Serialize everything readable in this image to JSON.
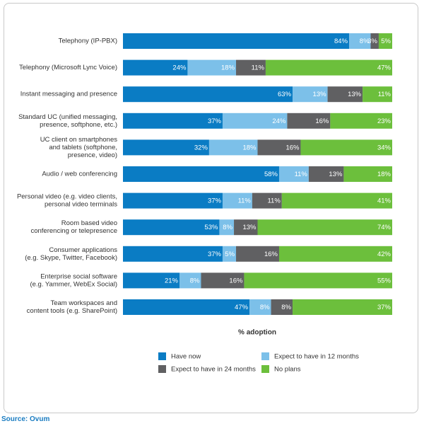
{
  "source": "Source: Ovum",
  "chart_data": {
    "type": "bar",
    "orientation": "horizontal",
    "stacked": true,
    "xlabel": "% adoption",
    "categories": [
      [
        "Telephony (IP-PBX)"
      ],
      [
        "Telephony (Microsoft Lync Voice)"
      ],
      [
        "Instant messaging and presence"
      ],
      [
        "Standard UC (unified messaging,",
        "presence, softphone, etc.)"
      ],
      [
        "UC client on smartphones",
        "and tablets (softphone,",
        "presence, video)"
      ],
      [
        "Audio / web conferencing"
      ],
      [
        "Personal video (e.g. video clients,",
        "personal video terminals"
      ],
      [
        "Room based video",
        "conferencing or telepresence"
      ],
      [
        "Consumer applications",
        "(e.g. Skype, Twitter, Facebook)"
      ],
      [
        "Enterprise social software",
        "(e.g. Yammer, WebEx Social)"
      ],
      [
        "Team workspaces and",
        "content tools (e.g. SharePoint)"
      ]
    ],
    "series": [
      {
        "name": "Have now",
        "color": "#0a7cc4",
        "values": [
          84,
          24,
          63,
          37,
          32,
          58,
          37,
          53,
          37,
          21,
          47
        ]
      },
      {
        "name": "Expect to have in 12 months",
        "color": "#7cc0e9",
        "values": [
          8,
          18,
          13,
          24,
          18,
          11,
          11,
          8,
          5,
          8,
          8
        ]
      },
      {
        "name": "Expect to have in 24 months",
        "color": "#606062",
        "values": [
          3,
          11,
          13,
          16,
          16,
          13,
          11,
          13,
          16,
          16,
          8
        ]
      },
      {
        "name": "No plans",
        "color": "#6cbf3c",
        "values": [
          5,
          47,
          11,
          23,
          34,
          18,
          41,
          74,
          42,
          55,
          37
        ]
      }
    ],
    "legend_position": "bottom",
    "grid": false
  }
}
